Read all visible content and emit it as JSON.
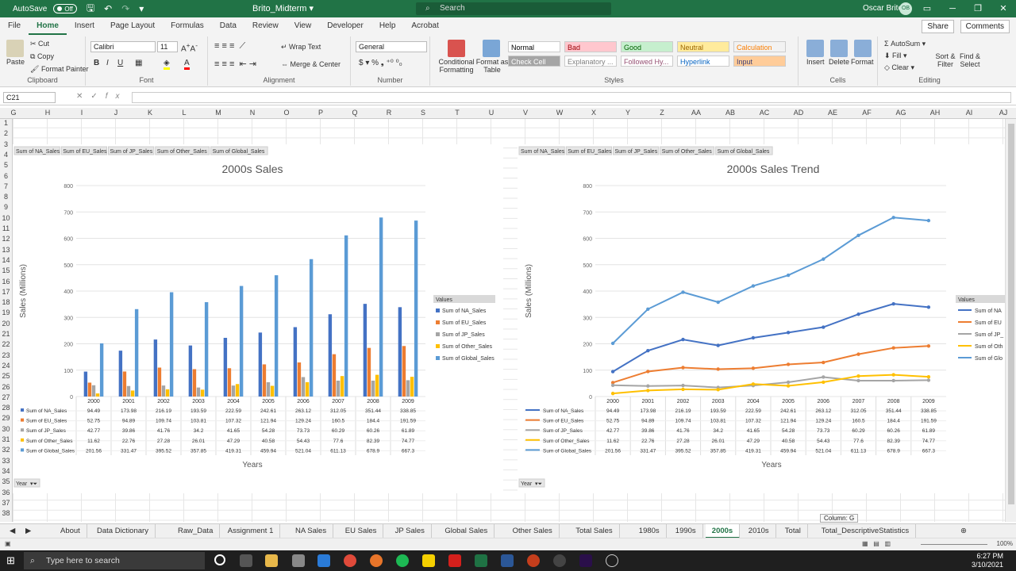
{
  "window": {
    "autosave_label": "AutoSave",
    "autosave_state": "Off",
    "file_title": "Brito_Midterm",
    "search_placeholder": "Search",
    "user_name": "Oscar Brito",
    "user_initials": "OB"
  },
  "menu": {
    "tabs": [
      "File",
      "Home",
      "Insert",
      "Page Layout",
      "Formulas",
      "Data",
      "Review",
      "View",
      "Developer",
      "Help",
      "Acrobat"
    ],
    "active": "Home",
    "share": "Share",
    "comments": "Comments"
  },
  "ribbon": {
    "clipboard": {
      "label": "Clipboard",
      "paste": "Paste",
      "cut": "Cut",
      "copy": "Copy",
      "format_painter": "Format Painter"
    },
    "font": {
      "label": "Font",
      "name": "Calibri",
      "size": "11"
    },
    "alignment": {
      "label": "Alignment",
      "wrap": "Wrap Text",
      "merge": "Merge & Center"
    },
    "number": {
      "label": "Number",
      "format": "General"
    },
    "styles": {
      "label": "Styles",
      "conditional": "Conditional Formatting",
      "format_table": "Format as Table",
      "cells": [
        {
          "name": "Normal",
          "bg": "#ffffff",
          "color": "#000000"
        },
        {
          "name": "Bad",
          "bg": "#ffc7ce",
          "color": "#9c0006"
        },
        {
          "name": "Good",
          "bg": "#c6efce",
          "color": "#006100"
        },
        {
          "name": "Neutral",
          "bg": "#ffeb9c",
          "color": "#9c6500"
        },
        {
          "name": "Calculation",
          "bg": "#f2f2f2",
          "color": "#fa7d00"
        },
        {
          "name": "Check Cell",
          "bg": "#a5a5a5",
          "color": "#ffffff"
        },
        {
          "name": "Explanatory ...",
          "bg": "#ffffff",
          "color": "#7f7f7f"
        },
        {
          "name": "Followed Hy...",
          "bg": "#ffffff",
          "color": "#954f72"
        },
        {
          "name": "Hyperlink",
          "bg": "#ffffff",
          "color": "#0563c1"
        },
        {
          "name": "Input",
          "bg": "#ffcc99",
          "color": "#3f3f76"
        }
      ]
    },
    "cells": {
      "label": "Cells",
      "insert": "Insert",
      "delete": "Delete",
      "format": "Format"
    },
    "editing": {
      "label": "Editing",
      "autosum": "AutoSum",
      "fill": "Fill",
      "clear": "Clear",
      "sort": "Sort & Filter",
      "find": "Find & Select"
    }
  },
  "formula_bar": {
    "name_box": "C21",
    "formula": ""
  },
  "columns": [
    "G",
    "H",
    "I",
    "J",
    "K",
    "L",
    "M",
    "N",
    "O",
    "P",
    "Q",
    "R",
    "S",
    "T",
    "U",
    "V",
    "W",
    "X",
    "Y",
    "Z",
    "AA",
    "AB",
    "AC",
    "AD",
    "AE",
    "AF",
    "AG",
    "AH",
    "AI",
    "AJ"
  ],
  "rows": [
    "1",
    "2",
    "3",
    "4",
    "5",
    "6",
    "7",
    "8",
    "9",
    "10",
    "11",
    "12",
    "13",
    "14",
    "15",
    "16",
    "17",
    "18",
    "19",
    "20",
    "21",
    "22",
    "23",
    "24",
    "25",
    "26",
    "27",
    "28",
    "29",
    "30",
    "31",
    "32",
    "33",
    "34",
    "35",
    "36",
    "37",
    "38"
  ],
  "pivot_fields": [
    "Sum of NA_Sales",
    "Sum of EU_Sales",
    "Sum of JP_Sales",
    "Sum of Other_Sales",
    "Sum of Global_Sales"
  ],
  "year_filter": "Year",
  "chart_data": [
    {
      "type": "bar",
      "title": "2000s Sales",
      "xlabel": "Years",
      "ylabel": "Sales (Millions)",
      "ylim": [
        0,
        800
      ],
      "yticks": [
        0,
        100,
        200,
        300,
        400,
        500,
        600,
        700,
        800
      ],
      "categories": [
        "2000",
        "2001",
        "2002",
        "2003",
        "2004",
        "2005",
        "2006",
        "2007",
        "2008",
        "2009"
      ],
      "legend_title": "Values",
      "legend_position": "right",
      "grid": true,
      "series": [
        {
          "name": "Sum of NA_Sales",
          "color": "#4472c4",
          "values": [
            94.49,
            173.98,
            216.19,
            193.59,
            222.59,
            242.61,
            263.12,
            312.05,
            351.44,
            338.85
          ]
        },
        {
          "name": "Sum of EU_Sales",
          "color": "#ed7d31",
          "values": [
            52.75,
            94.89,
            109.74,
            103.81,
            107.32,
            121.94,
            129.24,
            160.5,
            184.4,
            191.59
          ]
        },
        {
          "name": "Sum of JP_Sales",
          "color": "#a5a5a5",
          "values": [
            42.77,
            39.86,
            41.76,
            34.2,
            41.65,
            54.28,
            73.73,
            60.29,
            60.26,
            61.89
          ]
        },
        {
          "name": "Sum of Other_Sales",
          "color": "#ffc000",
          "values": [
            11.62,
            22.76,
            27.28,
            26.01,
            47.29,
            40.58,
            54.43,
            77.6,
            82.39,
            74.77
          ]
        },
        {
          "name": "Sum of Global_Sales",
          "color": "#5b9bd5",
          "values": [
            201.56,
            331.47,
            395.52,
            357.85,
            419.31,
            459.94,
            521.04,
            611.13,
            678.9,
            667.3
          ]
        }
      ]
    },
    {
      "type": "line",
      "title": "2000s Sales Trend",
      "xlabel": "Years",
      "ylabel": "Sales (Millions)",
      "ylim": [
        0,
        800
      ],
      "yticks": [
        0,
        100,
        200,
        300,
        400,
        500,
        600,
        700,
        800
      ],
      "categories": [
        "2000",
        "2001",
        "2002",
        "2003",
        "2004",
        "2005",
        "2006",
        "2007",
        "2008",
        "2009"
      ],
      "legend_title": "Values",
      "legend_position": "right",
      "grid": true,
      "legend_labels": [
        "Sum of NA",
        "Sum of EU",
        "Sum of JP_",
        "Sum of Oth",
        "Sum of Glo"
      ],
      "series": [
        {
          "name": "Sum of NA_Sales",
          "color": "#4472c4",
          "values": [
            94.49,
            173.98,
            216.19,
            193.59,
            222.59,
            242.61,
            263.12,
            312.05,
            351.44,
            338.85
          ]
        },
        {
          "name": "Sum of EU_Sales",
          "color": "#ed7d31",
          "values": [
            52.75,
            94.89,
            109.74,
            103.81,
            107.32,
            121.94,
            129.24,
            160.5,
            184.4,
            191.59
          ]
        },
        {
          "name": "Sum of JP_Sales",
          "color": "#a5a5a5",
          "values": [
            42.77,
            39.86,
            41.76,
            34.2,
            41.65,
            54.28,
            73.73,
            60.29,
            60.26,
            61.89
          ]
        },
        {
          "name": "Sum of Other_Sales",
          "color": "#ffc000",
          "values": [
            11.62,
            22.76,
            27.28,
            26.01,
            47.29,
            40.58,
            54.43,
            77.6,
            82.39,
            74.77
          ]
        },
        {
          "name": "Sum of Global_Sales",
          "color": "#5b9bd5",
          "values": [
            201.56,
            331.47,
            395.52,
            357.85,
            419.31,
            459.94,
            521.04,
            611.13,
            678.9,
            667.3
          ]
        }
      ]
    }
  ],
  "sheet_tabs": [
    "About",
    "Data Dictionary",
    "Raw_Data",
    "Assignment 1",
    "NA Sales",
    "EU Sales",
    "JP Sales",
    "Global Sales",
    "Other Sales",
    "Total Sales",
    "1980s",
    "1990s",
    "2000s",
    "2010s",
    "Total",
    "Total_DescriptiveStatistics"
  ],
  "active_sheet": "2000s",
  "tooltip": "Column: G",
  "status": {
    "zoom": "100%"
  },
  "taskbar": {
    "search_placeholder": "Type here to search",
    "time": "6:27 PM",
    "date": "3/10/2021"
  }
}
